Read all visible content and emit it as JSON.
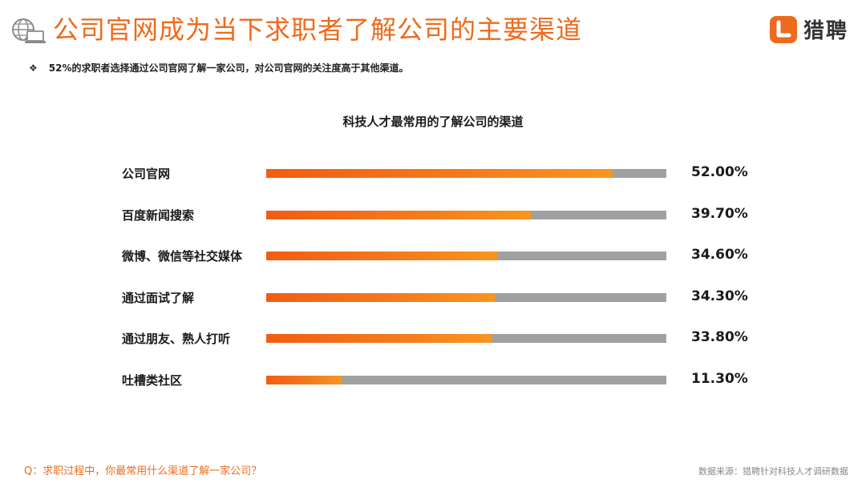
{
  "header": {
    "title": "公司官网成为当下求职者了解公司的主要渠道",
    "icon": "globe-laptop-icon",
    "accent_color": "#ee6a1c"
  },
  "logo": {
    "text": "猎聘",
    "icon": "liepin-logo-icon",
    "brand_color": "#ee6a1c"
  },
  "bullet": {
    "icon": "diamond-bullet-icon",
    "text": "52%的求职者选择通过公司官网了解一家公司，对公司官网的关注度高于其他渠道。"
  },
  "chart_data": {
    "type": "bar",
    "orientation": "horizontal",
    "title": "科技人才最常用的了解公司的渠道",
    "categories": [
      "公司官网",
      "百度新闻搜索",
      "微博、微信等社交媒体",
      "通过面试了解",
      "通过朋友、熟人打听",
      "吐槽类社区"
    ],
    "values": [
      52.0,
      39.7,
      34.6,
      34.3,
      33.8,
      11.3
    ],
    "value_labels": [
      "52.00%",
      "39.70%",
      "34.60%",
      "34.30%",
      "33.80%",
      "11.30%"
    ],
    "xlim": [
      0,
      60
    ],
    "bar_color": "#f47c1c",
    "track_color": "#a0a0a0",
    "grid": false,
    "legend": "none"
  },
  "footer": {
    "question": "Q：求职过程中，你最常用什么渠道了解一家公司？",
    "source": "数据来源：猎聘针对科技人才调研数据"
  }
}
